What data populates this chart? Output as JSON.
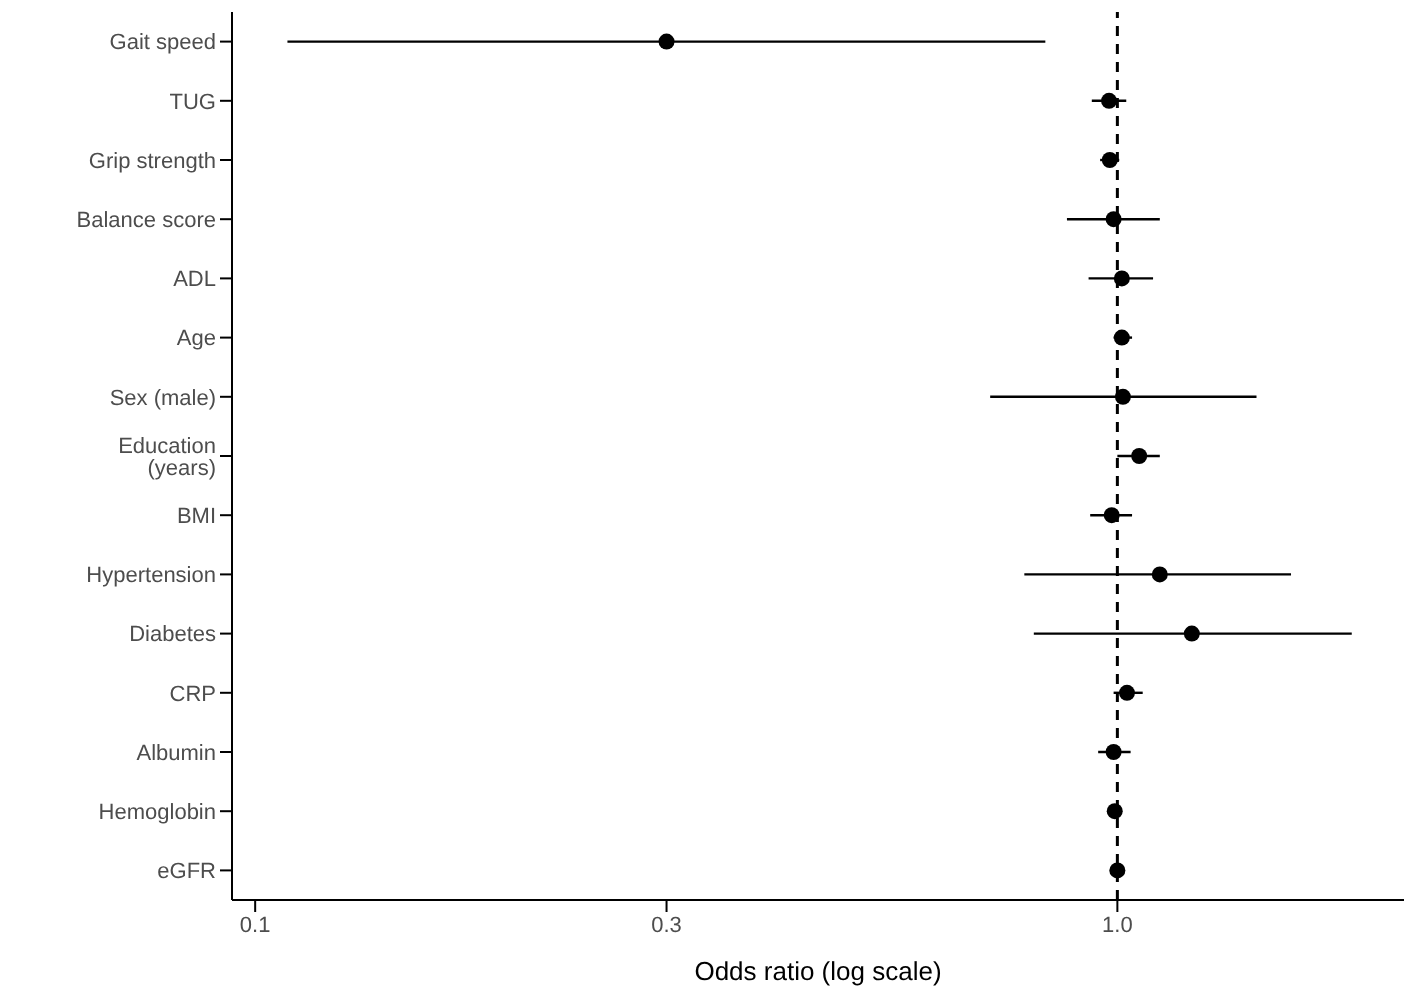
{
  "chart_data": {
    "type": "scatter",
    "orientation": "horizontal",
    "xlabel": "Odds ratio (log scale)",
    "categories": [
      "Gait speed",
      "TUG",
      "Grip strength",
      "Balance score",
      "ADL",
      "Age",
      "Sex (male)",
      "Education (years)",
      "BMI",
      "Hypertension",
      "Diabetes",
      "CRP",
      "Albumin",
      "Hemoglobin",
      "eGFR"
    ],
    "values": [
      0.3,
      0.978,
      0.98,
      0.99,
      1.012,
      1.012,
      1.015,
      1.06,
      0.985,
      1.12,
      1.22,
      1.026,
      0.99,
      0.993,
      1.0
    ],
    "errors": [
      [
        0.109,
        0.825
      ],
      [
        0.934,
        1.024
      ],
      [
        0.955,
        1.005
      ],
      [
        0.874,
        1.12
      ],
      [
        0.926,
        1.1
      ],
      [
        0.99,
        1.04
      ],
      [
        0.712,
        1.45
      ],
      [
        1.0,
        1.12
      ],
      [
        0.93,
        1.04
      ],
      [
        0.78,
        1.59
      ],
      [
        0.8,
        1.87
      ],
      [
        0.99,
        1.07
      ],
      [
        0.95,
        1.036
      ],
      [
        0.98,
        1.007
      ],
      [
        0.98,
        1.01
      ]
    ],
    "color": "#000000",
    "marker": "circle",
    "log": "x",
    "grid": false,
    "xlim": [
      0.094,
      2.15
    ],
    "xticks": [
      0.1,
      0.3,
      {
        "value": 1,
        "label": "1.0"
      }
    ],
    "ref_lines": [
      {
        "axis": "x",
        "value": 1,
        "line_style": "dashed",
        "color": "#000000"
      }
    ]
  }
}
